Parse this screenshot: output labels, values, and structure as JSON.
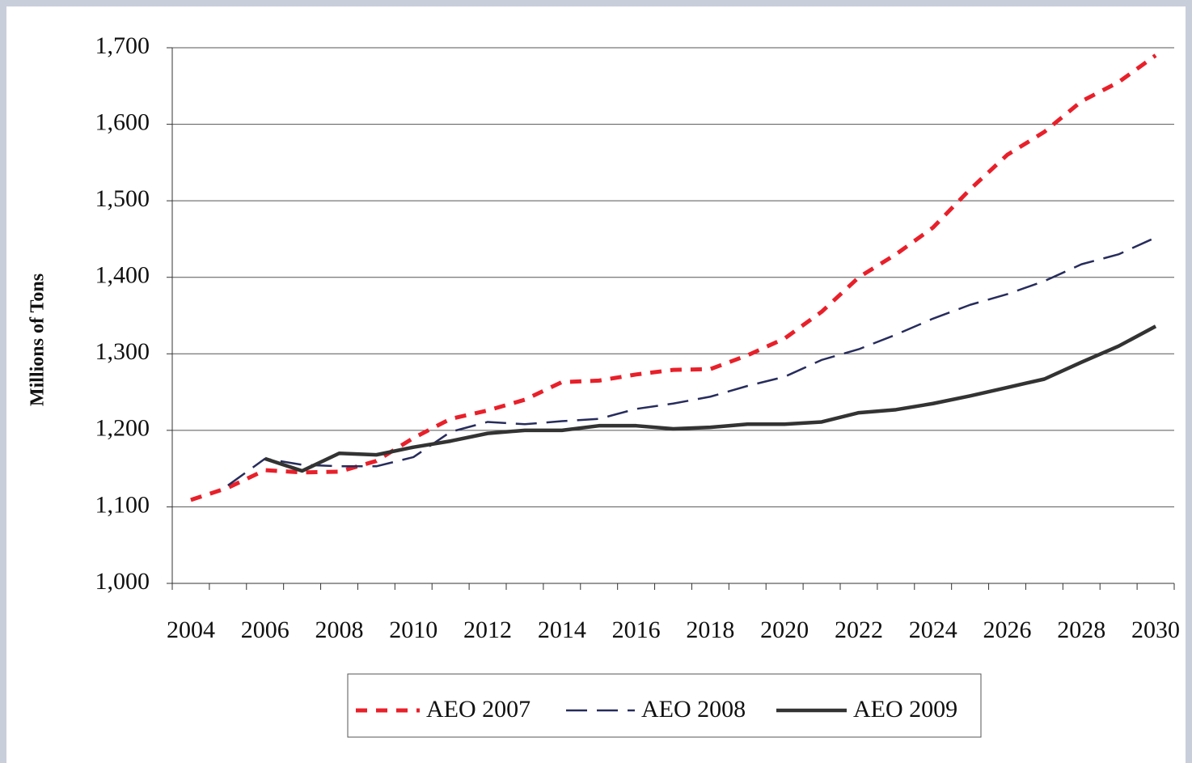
{
  "chart_data": {
    "type": "line",
    "y_label": "Millions of Tons",
    "categories": [
      "2004",
      null,
      "2006",
      null,
      "2008",
      null,
      "2010",
      null,
      "2012",
      null,
      "2014",
      null,
      "2016",
      null,
      "2018",
      null,
      "2020",
      null,
      "2022",
      null,
      "2024",
      null,
      "2026",
      null,
      "2028",
      null,
      "2030"
    ],
    "series": [
      {
        "name": "AEO 2007",
        "color": "#e8202a",
        "dash": "14,11",
        "width": 5,
        "values": [
          1109,
          1125,
          1148,
          1145,
          1146,
          1160,
          1190,
          1215,
          1226,
          1240,
          1263,
          1265,
          1273,
          1279,
          1280,
          1298,
          1320,
          1355,
          1400,
          1430,
          1465,
          1515,
          1560,
          1590,
          1630,
          1655,
          1690
        ]
      },
      {
        "name": "AEO 2008",
        "color": "#272c5c",
        "dash": "26,12",
        "width": 2.5,
        "values": [
          null,
          1128,
          1163,
          1155,
          1153,
          1153,
          1165,
          1198,
          1211,
          1208,
          1212,
          1215,
          1228,
          1235,
          1244,
          1258,
          1270,
          1292,
          1306,
          1325,
          1346,
          1364,
          1378,
          1395,
          1417,
          1430,
          1452
        ]
      },
      {
        "name": "AEO 2009",
        "color": "#333333",
        "dash": "none",
        "width": 4.5,
        "values": [
          null,
          null,
          1163,
          1147,
          1170,
          1168,
          1178,
          1186,
          1196,
          1200,
          1200,
          1206,
          1206,
          1202,
          1204,
          1208,
          1208,
          1211,
          1223,
          1227,
          1235,
          1245,
          1256,
          1267,
          1289,
          1310,
          1336
        ]
      }
    ],
    "ylim": [
      1000,
      1700
    ],
    "yticks": [
      {
        "value": 1000,
        "label": "1,000"
      },
      {
        "value": 1100,
        "label": "1,100"
      },
      {
        "value": 1200,
        "label": "1,200"
      },
      {
        "value": 1300,
        "label": "1,300"
      },
      {
        "value": 1400,
        "label": "1,400"
      },
      {
        "value": 1500,
        "label": "1,500"
      },
      {
        "value": 1600,
        "label": "1,600"
      },
      {
        "value": 1700,
        "label": "1,700"
      }
    ],
    "grid": true
  }
}
